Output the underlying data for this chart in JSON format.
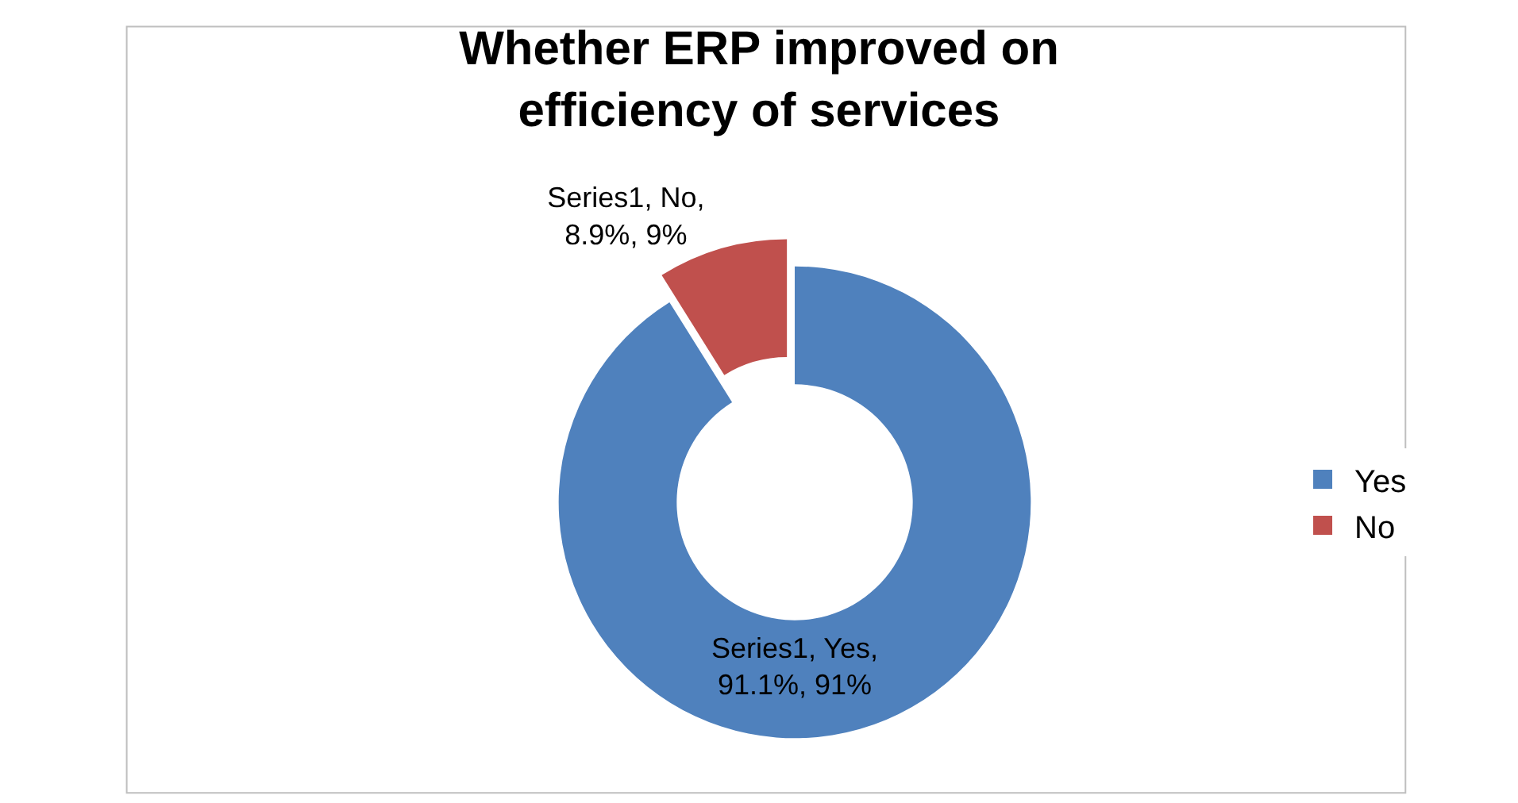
{
  "chart_data": {
    "type": "donut",
    "title": "Whether ERP improved on efficiency of services",
    "categories": [
      "Yes",
      "No"
    ],
    "values": [
      91.1,
      8.9
    ],
    "colors": [
      "#4f81bd",
      "#c0504d"
    ],
    "value_labels": [
      "Series1, Yes, 91.1%, 91%",
      "Series1, No, 8.9%, 9%"
    ],
    "legend": "right"
  }
}
